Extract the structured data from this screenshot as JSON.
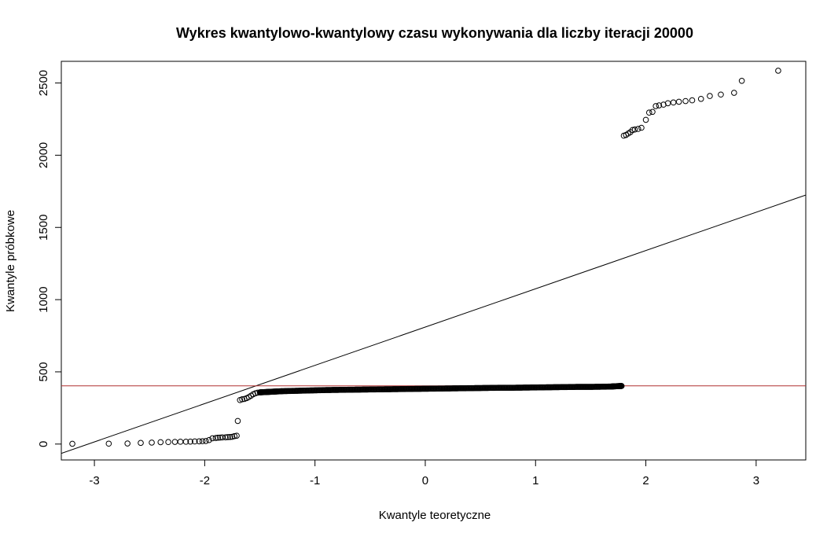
{
  "chart_data": {
    "type": "scatter",
    "title": "Wykres kwantylowo-kwantylowy czasu wykonywania dla liczby iteracji 20000",
    "xlabel": "Kwantyle teoretyczne",
    "ylabel": "Kwantyle próbkowe",
    "xlim": [
      -3.3,
      3.45
    ],
    "ylim": [
      -110,
      2650
    ],
    "x_ticks": [
      "-3",
      "-2",
      "-1",
      "0",
      "1",
      "2",
      "3"
    ],
    "y_ticks": [
      "0",
      "500",
      "1000",
      "1500",
      "2000",
      "2500"
    ],
    "grid": false,
    "legend": "none",
    "point_color": "#000000",
    "reference_lines": [
      {
        "kind": "qq-line",
        "color": "#000000",
        "intercept": 810,
        "slope": 265
      },
      {
        "kind": "horizontal",
        "color": "#b03030",
        "y": 403
      }
    ],
    "series": [
      {
        "points": [
          [
            -3.2,
            2
          ],
          [
            -2.87,
            3
          ],
          [
            -2.7,
            4
          ],
          [
            -2.58,
            8
          ],
          [
            -2.48,
            10
          ],
          [
            -2.4,
            13
          ],
          [
            -2.33,
            14
          ],
          [
            -2.27,
            15
          ],
          [
            -2.22,
            16
          ],
          [
            -2.17,
            16
          ],
          [
            -2.13,
            17
          ],
          [
            -2.09,
            18
          ],
          [
            -2.05,
            19
          ],
          [
            -2.02,
            20
          ],
          [
            -1.99,
            21
          ],
          [
            -1.96,
            28
          ],
          [
            -1.93,
            40
          ],
          [
            -1.9,
            42
          ],
          [
            -1.88,
            44
          ],
          [
            -1.86,
            45
          ],
          [
            -1.84,
            46
          ],
          [
            -1.81,
            47
          ],
          [
            -1.79,
            48
          ],
          [
            -1.77,
            49
          ],
          [
            -1.75,
            50
          ],
          [
            -1.73,
            55
          ],
          [
            -1.71,
            58
          ],
          [
            -1.7,
            160
          ],
          [
            -1.68,
            305
          ],
          [
            -1.66,
            310
          ],
          [
            -1.64,
            312
          ],
          [
            -1.62,
            318
          ],
          [
            -1.6,
            325
          ],
          [
            -1.58,
            335
          ],
          [
            -1.56,
            345
          ],
          [
            -1.54,
            352
          ],
          [
            -1.52,
            356
          ],
          [
            -1.5,
            358
          ],
          [
            -1.45,
            360
          ],
          [
            -1.4,
            362
          ],
          [
            -1.35,
            364
          ],
          [
            -1.3,
            366
          ],
          [
            -1.2,
            368
          ],
          [
            -1.1,
            370
          ],
          [
            -1.0,
            372
          ],
          [
            -0.9,
            374
          ],
          [
            -0.8,
            375
          ],
          [
            -0.7,
            376
          ],
          [
            -0.6,
            377
          ],
          [
            -0.5,
            378
          ],
          [
            -0.4,
            379
          ],
          [
            -0.3,
            380
          ],
          [
            -0.2,
            381
          ],
          [
            -0.1,
            382
          ],
          [
            0.0,
            383
          ],
          [
            0.1,
            384
          ],
          [
            0.2,
            385
          ],
          [
            0.3,
            386
          ],
          [
            0.4,
            387
          ],
          [
            0.5,
            388
          ],
          [
            0.6,
            389
          ],
          [
            0.7,
            390
          ],
          [
            0.8,
            390
          ],
          [
            0.9,
            391
          ],
          [
            1.0,
            392
          ],
          [
            1.1,
            393
          ],
          [
            1.2,
            394
          ],
          [
            1.3,
            395
          ],
          [
            1.4,
            396
          ],
          [
            1.5,
            396
          ],
          [
            1.6,
            397
          ],
          [
            1.68,
            398
          ],
          [
            1.72,
            400
          ],
          [
            1.75,
            401
          ],
          [
            1.78,
            402
          ],
          [
            1.8,
            2135
          ],
          [
            1.82,
            2140
          ],
          [
            1.84,
            2150
          ],
          [
            1.86,
            2160
          ],
          [
            1.88,
            2175
          ],
          [
            1.9,
            2178
          ],
          [
            1.93,
            2182
          ],
          [
            1.96,
            2190
          ],
          [
            2.0,
            2245
          ],
          [
            2.03,
            2295
          ],
          [
            2.06,
            2300
          ],
          [
            2.09,
            2340
          ],
          [
            2.12,
            2345
          ],
          [
            2.16,
            2350
          ],
          [
            2.2,
            2360
          ],
          [
            2.25,
            2365
          ],
          [
            2.3,
            2370
          ],
          [
            2.36,
            2375
          ],
          [
            2.42,
            2380
          ],
          [
            2.5,
            2390
          ],
          [
            2.58,
            2410
          ],
          [
            2.68,
            2420
          ],
          [
            2.8,
            2432
          ],
          [
            2.87,
            2515
          ],
          [
            3.2,
            2585
          ]
        ]
      }
    ]
  }
}
